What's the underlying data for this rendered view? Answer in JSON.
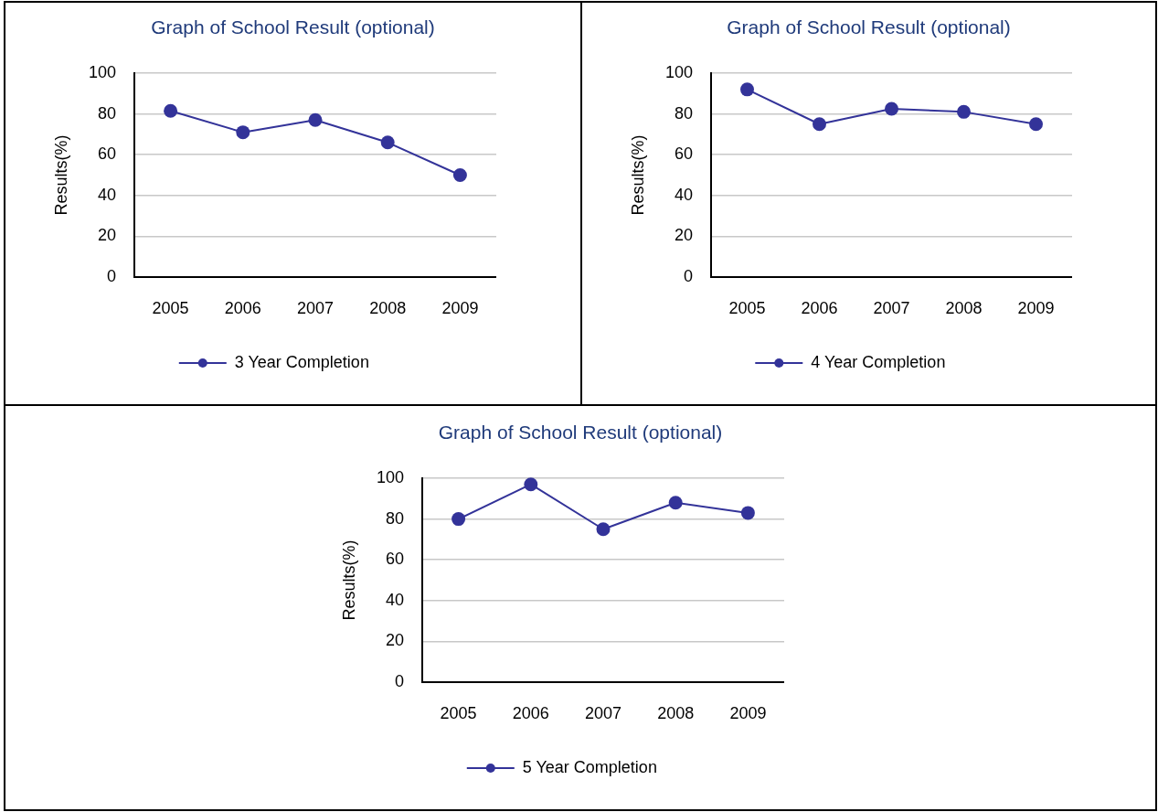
{
  "chart_data": [
    {
      "type": "line",
      "title": "Graph of School Result (optional)",
      "ylabel": "Results(%)",
      "categories": [
        "2005",
        "2006",
        "2007",
        "2008",
        "2009"
      ],
      "series": [
        {
          "name": "3 Year Completion",
          "color": "#333399",
          "values": [
            81.5,
            71,
            77,
            66,
            50
          ]
        }
      ],
      "ylim": [
        0,
        100
      ],
      "yticks": [
        0,
        20,
        40,
        60,
        80,
        100
      ],
      "grid": "y",
      "legend": "bottom",
      "marker": "circle"
    },
    {
      "type": "line",
      "title": "Graph of School Result (optional)",
      "ylabel": "Results(%)",
      "categories": [
        "2005",
        "2006",
        "2007",
        "2008",
        "2009"
      ],
      "series": [
        {
          "name": "4 Year Completion",
          "color": "#333399",
          "values": [
            92,
            75,
            82.5,
            81,
            75
          ]
        }
      ],
      "ylim": [
        0,
        100
      ],
      "yticks": [
        0,
        20,
        40,
        60,
        80,
        100
      ],
      "grid": "y",
      "legend": "bottom",
      "marker": "circle"
    },
    {
      "type": "line",
      "title": "Graph of School Result (optional)",
      "ylabel": "Results(%)",
      "categories": [
        "2005",
        "2006",
        "2007",
        "2008",
        "2009"
      ],
      "series": [
        {
          "name": "5 Year Completion",
          "color": "#333399",
          "values": [
            80,
            97,
            75,
            88,
            83
          ]
        }
      ],
      "ylim": [
        0,
        100
      ],
      "yticks": [
        0,
        20,
        40,
        60,
        80,
        100
      ],
      "grid": "y",
      "legend": "bottom",
      "marker": "circle"
    }
  ]
}
